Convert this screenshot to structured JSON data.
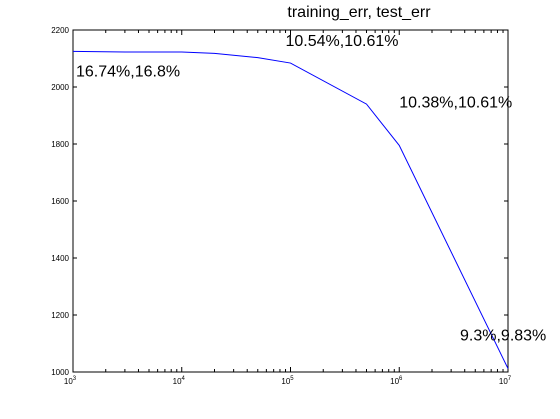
{
  "chart_data": {
    "type": "line",
    "title": "training_err, test_err",
    "xlabel": "",
    "ylabel": "",
    "xscale": "log",
    "xlim": [
      1000,
      10000000
    ],
    "ylim": [
      1000,
      2200
    ],
    "grid": false,
    "legend": "none",
    "x_ticks": [
      {
        "base": "10",
        "exp": "3",
        "value": 1000
      },
      {
        "base": "10",
        "exp": "4",
        "value": 10000
      },
      {
        "base": "10",
        "exp": "5",
        "value": 100000
      },
      {
        "base": "10",
        "exp": "6",
        "value": 1000000
      },
      {
        "base": "10",
        "exp": "7",
        "value": 10000000
      }
    ],
    "y_ticks": [
      "1000",
      "1200",
      "1400",
      "1600",
      "1800",
      "2000",
      "2200"
    ],
    "series": [
      {
        "color": "#0000ff",
        "x": [
          1000,
          3000,
          10000,
          20000,
          50000,
          100000,
          500000,
          1000000,
          10000000
        ],
        "y": [
          2125,
          2123,
          2123,
          2118,
          2103,
          2084,
          1940,
          1795,
          1012
        ]
      }
    ],
    "annotations": [
      {
        "text": "16.74%,16.8%",
        "x": 1000,
        "y": 2125
      },
      {
        "text": "10.54%,10.61%",
        "x": 100000,
        "y": 2084
      },
      {
        "text": "10.38%,10.61%",
        "x": 1000000,
        "y": 1795
      },
      {
        "text": "9.3%,9.83%",
        "x": 10000000,
        "y": 1012
      }
    ]
  }
}
